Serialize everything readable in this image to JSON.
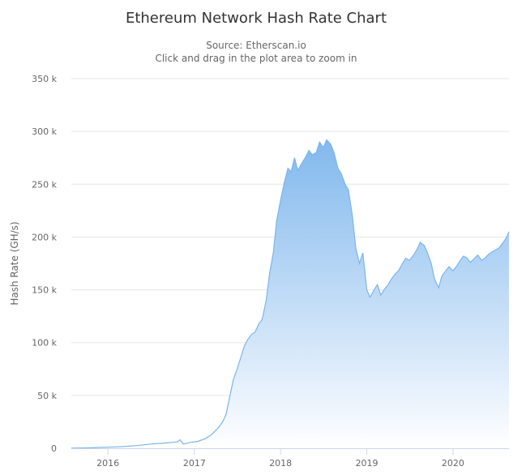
{
  "chart_data": {
    "type": "area",
    "title": "Ethereum Network Hash Rate Chart",
    "subtitle": [
      "Source: Etherscan.io",
      "Click and drag in the plot area to zoom in"
    ],
    "xlabel": "",
    "ylabel": "Hash Rate (GH/s)",
    "ylim": [
      0,
      350000
    ],
    "yticks": [
      0,
      50000,
      100000,
      150000,
      200000,
      250000,
      300000,
      350000
    ],
    "ytick_labels": [
      "0",
      "50 k",
      "100 k",
      "150 k",
      "200 k",
      "250 k",
      "300 k",
      "350 k"
    ],
    "xlim": [
      "2015-07-30",
      "2020-08-25"
    ],
    "xticks": [
      "2016-01-01",
      "2017-01-01",
      "2018-01-01",
      "2019-01-01",
      "2020-01-01"
    ],
    "xtick_labels": [
      "2016",
      "2017",
      "2018",
      "2019",
      "2020"
    ],
    "grid": true,
    "legend": "none",
    "colors": {
      "line": "#7cb5ec",
      "fill_top": "#7cb5ec",
      "fill_bottom": "#ffffff"
    },
    "series": [
      {
        "x": [
          "2015-07-30",
          "2015-10-01",
          "2016-01-01",
          "2016-03-01",
          "2016-05-01",
          "2016-07-01",
          "2016-09-01",
          "2016-10-20",
          "2016-11-01",
          "2016-11-15",
          "2016-12-15",
          "2017-01-15",
          "2017-02-15",
          "2017-03-15",
          "2017-04-15",
          "2017-05-01",
          "2017-05-15",
          "2017-06-01",
          "2017-06-15",
          "2017-07-01",
          "2017-07-15",
          "2017-08-01",
          "2017-08-15",
          "2017-09-01",
          "2017-09-15",
          "2017-10-01",
          "2017-10-15",
          "2017-11-01",
          "2017-11-15",
          "2017-12-01",
          "2017-12-15",
          "2018-01-01",
          "2018-01-15",
          "2018-02-01",
          "2018-02-15",
          "2018-03-01",
          "2018-03-15",
          "2018-04-01",
          "2018-04-15",
          "2018-05-01",
          "2018-05-15",
          "2018-06-01",
          "2018-06-15",
          "2018-07-01",
          "2018-07-15",
          "2018-08-01",
          "2018-08-15",
          "2018-09-01",
          "2018-09-15",
          "2018-10-01",
          "2018-10-15",
          "2018-11-01",
          "2018-11-15",
          "2018-12-01",
          "2018-12-15",
          "2019-01-01",
          "2019-01-15",
          "2019-02-01",
          "2019-02-15",
          "2019-03-01",
          "2019-03-15",
          "2019-04-01",
          "2019-04-15",
          "2019-05-01",
          "2019-05-15",
          "2019-06-01",
          "2019-06-15",
          "2019-07-01",
          "2019-07-15",
          "2019-08-01",
          "2019-08-15",
          "2019-09-01",
          "2019-09-15",
          "2019-10-01",
          "2019-10-15",
          "2019-11-01",
          "2019-11-15",
          "2019-12-01",
          "2019-12-15",
          "2020-01-01",
          "2020-01-15",
          "2020-02-01",
          "2020-02-15",
          "2020-03-01",
          "2020-03-15",
          "2020-04-01",
          "2020-04-15",
          "2020-05-01",
          "2020-05-15",
          "2020-06-01",
          "2020-06-15",
          "2020-07-01",
          "2020-07-15",
          "2020-08-01",
          "2020-08-15",
          "2020-08-25"
        ],
        "values": [
          100,
          300,
          1000,
          1500,
          2500,
          4000,
          5000,
          6000,
          8000,
          4000,
          5500,
          6500,
          9000,
          13000,
          20000,
          25000,
          32000,
          50000,
          65000,
          75000,
          85000,
          97000,
          103000,
          108000,
          110000,
          118000,
          122000,
          140000,
          165000,
          185000,
          215000,
          235000,
          250000,
          265000,
          262000,
          275000,
          263000,
          270000,
          275000,
          282000,
          278000,
          280000,
          290000,
          285000,
          292000,
          288000,
          280000,
          265000,
          260000,
          250000,
          245000,
          220000,
          190000,
          175000,
          185000,
          150000,
          143000,
          150000,
          155000,
          145000,
          150000,
          155000,
          160000,
          165000,
          168000,
          175000,
          180000,
          178000,
          182000,
          188000,
          195000,
          192000,
          185000,
          175000,
          160000,
          152000,
          163000,
          168000,
          172000,
          168000,
          172000,
          178000,
          182000,
          180000,
          176000,
          180000,
          183000,
          178000,
          180000,
          184000,
          186000,
          188000,
          190000,
          195000,
          200000,
          205000
        ]
      }
    ]
  }
}
